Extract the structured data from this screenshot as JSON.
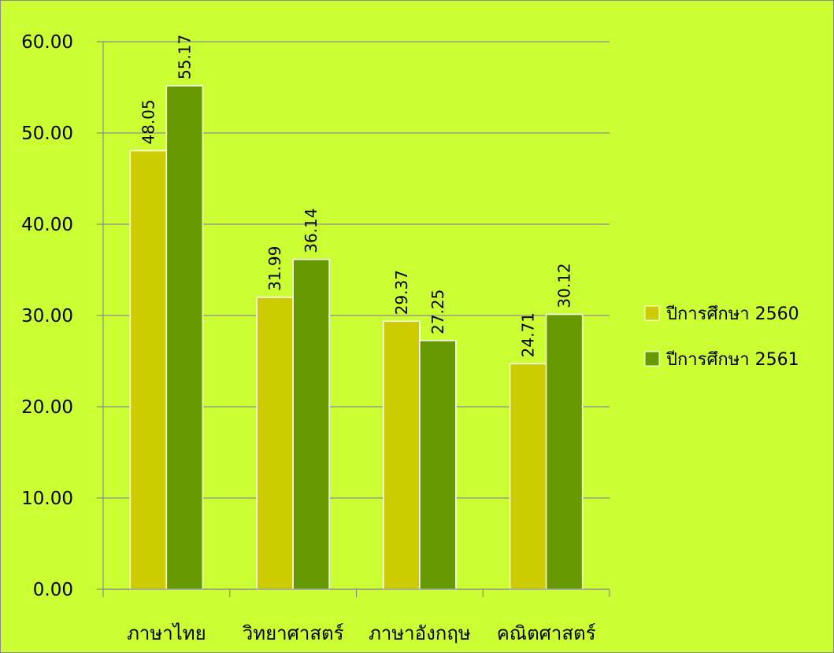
{
  "chart_data": {
    "type": "bar",
    "categories": [
      "ภาษาไทย",
      "วิทยาศาสตร์",
      "ภาษาอังกฤษ",
      "คณิตศาสตร์"
    ],
    "series": [
      {
        "name": "ปีการศึกษา 2560",
        "color": "#cccc00",
        "values": [
          48.05,
          31.99,
          29.37,
          24.71
        ],
        "labels": [
          "48.05",
          "31.99",
          "29.37",
          "24.71"
        ]
      },
      {
        "name": "ปีการศึกษา 2561",
        "color": "#669900",
        "values": [
          55.17,
          36.14,
          27.25,
          30.12
        ],
        "labels": [
          "55.17",
          "36.14",
          "27.25",
          "30.12"
        ]
      }
    ],
    "ylim": [
      0,
      60
    ],
    "yticks": [
      "0.00",
      "10.00",
      "20.00",
      "30.00",
      "40.00",
      "50.00",
      "60.00"
    ],
    "grid": true,
    "legend_position": "right",
    "background_color": "#ccff33"
  }
}
